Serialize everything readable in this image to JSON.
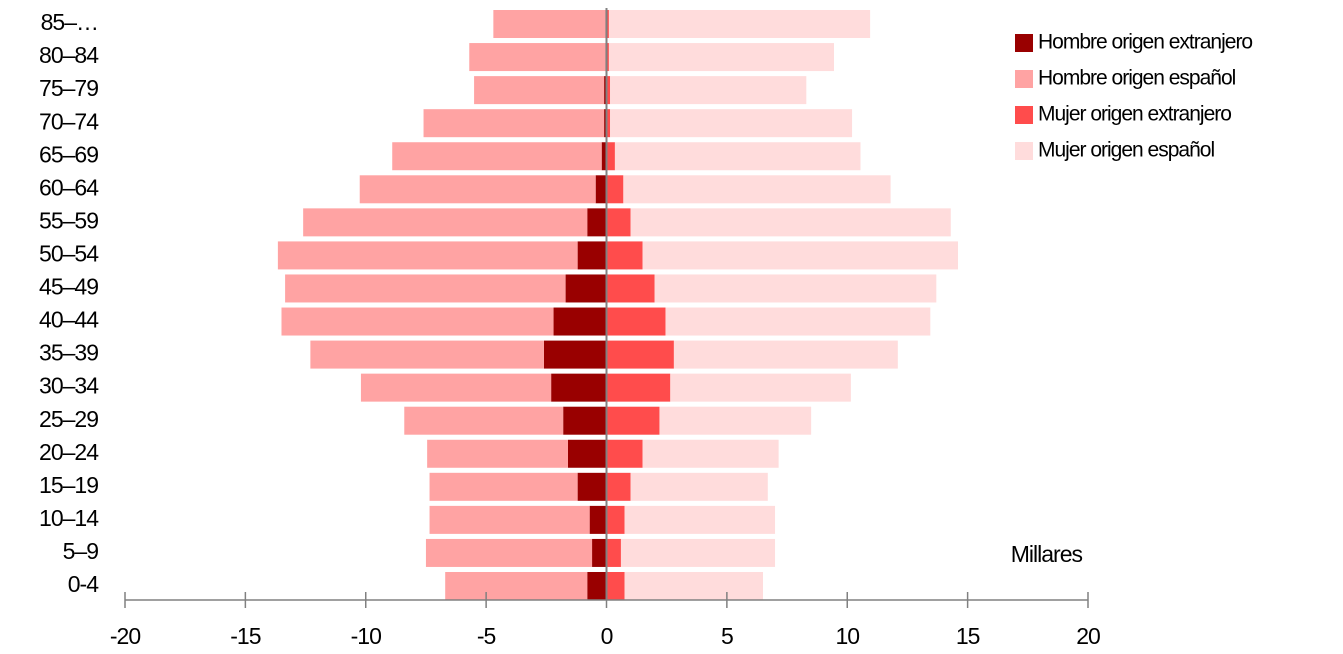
{
  "chart_data": {
    "type": "bar",
    "orientation": "horizontal",
    "stacked": true,
    "categories": [
      "0-4",
      "5–9",
      "10–14",
      "15–19",
      "20–24",
      "25–29",
      "30–34",
      "35–39",
      "40–44",
      "45–49",
      "50–54",
      "55–59",
      "60–64",
      "65–69",
      "70–74",
      "75–79",
      "80–84",
      "85–…"
    ],
    "series": [
      {
        "name": "Hombre origen extranjero",
        "color": "#990000",
        "values": [
          -0.8,
          -0.6,
          -0.7,
          -1.2,
          -1.6,
          -1.8,
          -2.3,
          -2.6,
          -2.2,
          -1.7,
          -1.2,
          -0.8,
          -0.45,
          -0.2,
          -0.1,
          -0.1,
          -0.05,
          -0.05
        ]
      },
      {
        "name": "Hombre origen español",
        "color": "#ffa3a3",
        "values": [
          -5.9,
          -6.9,
          -6.65,
          -6.15,
          -5.85,
          -6.6,
          -7.9,
          -9.7,
          -11.3,
          -11.65,
          -12.45,
          -11.8,
          -9.8,
          -8.7,
          -7.5,
          -5.4,
          -5.65,
          -4.65
        ]
      },
      {
        "name": "Mujer origen extranjero",
        "color": "#ff4c4c",
        "values": [
          0.75,
          0.6,
          0.75,
          1.0,
          1.5,
          2.2,
          2.65,
          2.8,
          2.45,
          2.0,
          1.5,
          1.0,
          0.7,
          0.35,
          0.15,
          0.15,
          0.1,
          0.1
        ]
      },
      {
        "name": "Mujer origen español",
        "color": "#ffdcdc",
        "values": [
          5.75,
          6.4,
          6.25,
          5.7,
          5.65,
          6.3,
          7.5,
          9.3,
          11.0,
          11.7,
          13.1,
          13.3,
          11.1,
          10.2,
          10.05,
          8.15,
          9.35,
          10.85
        ]
      }
    ],
    "xlim": [
      -20,
      20
    ],
    "xticks": [
      -20,
      -15,
      -10,
      -5,
      0,
      5,
      10,
      15,
      20
    ],
    "x_unit_label": "Millares",
    "legend": "top-right"
  }
}
